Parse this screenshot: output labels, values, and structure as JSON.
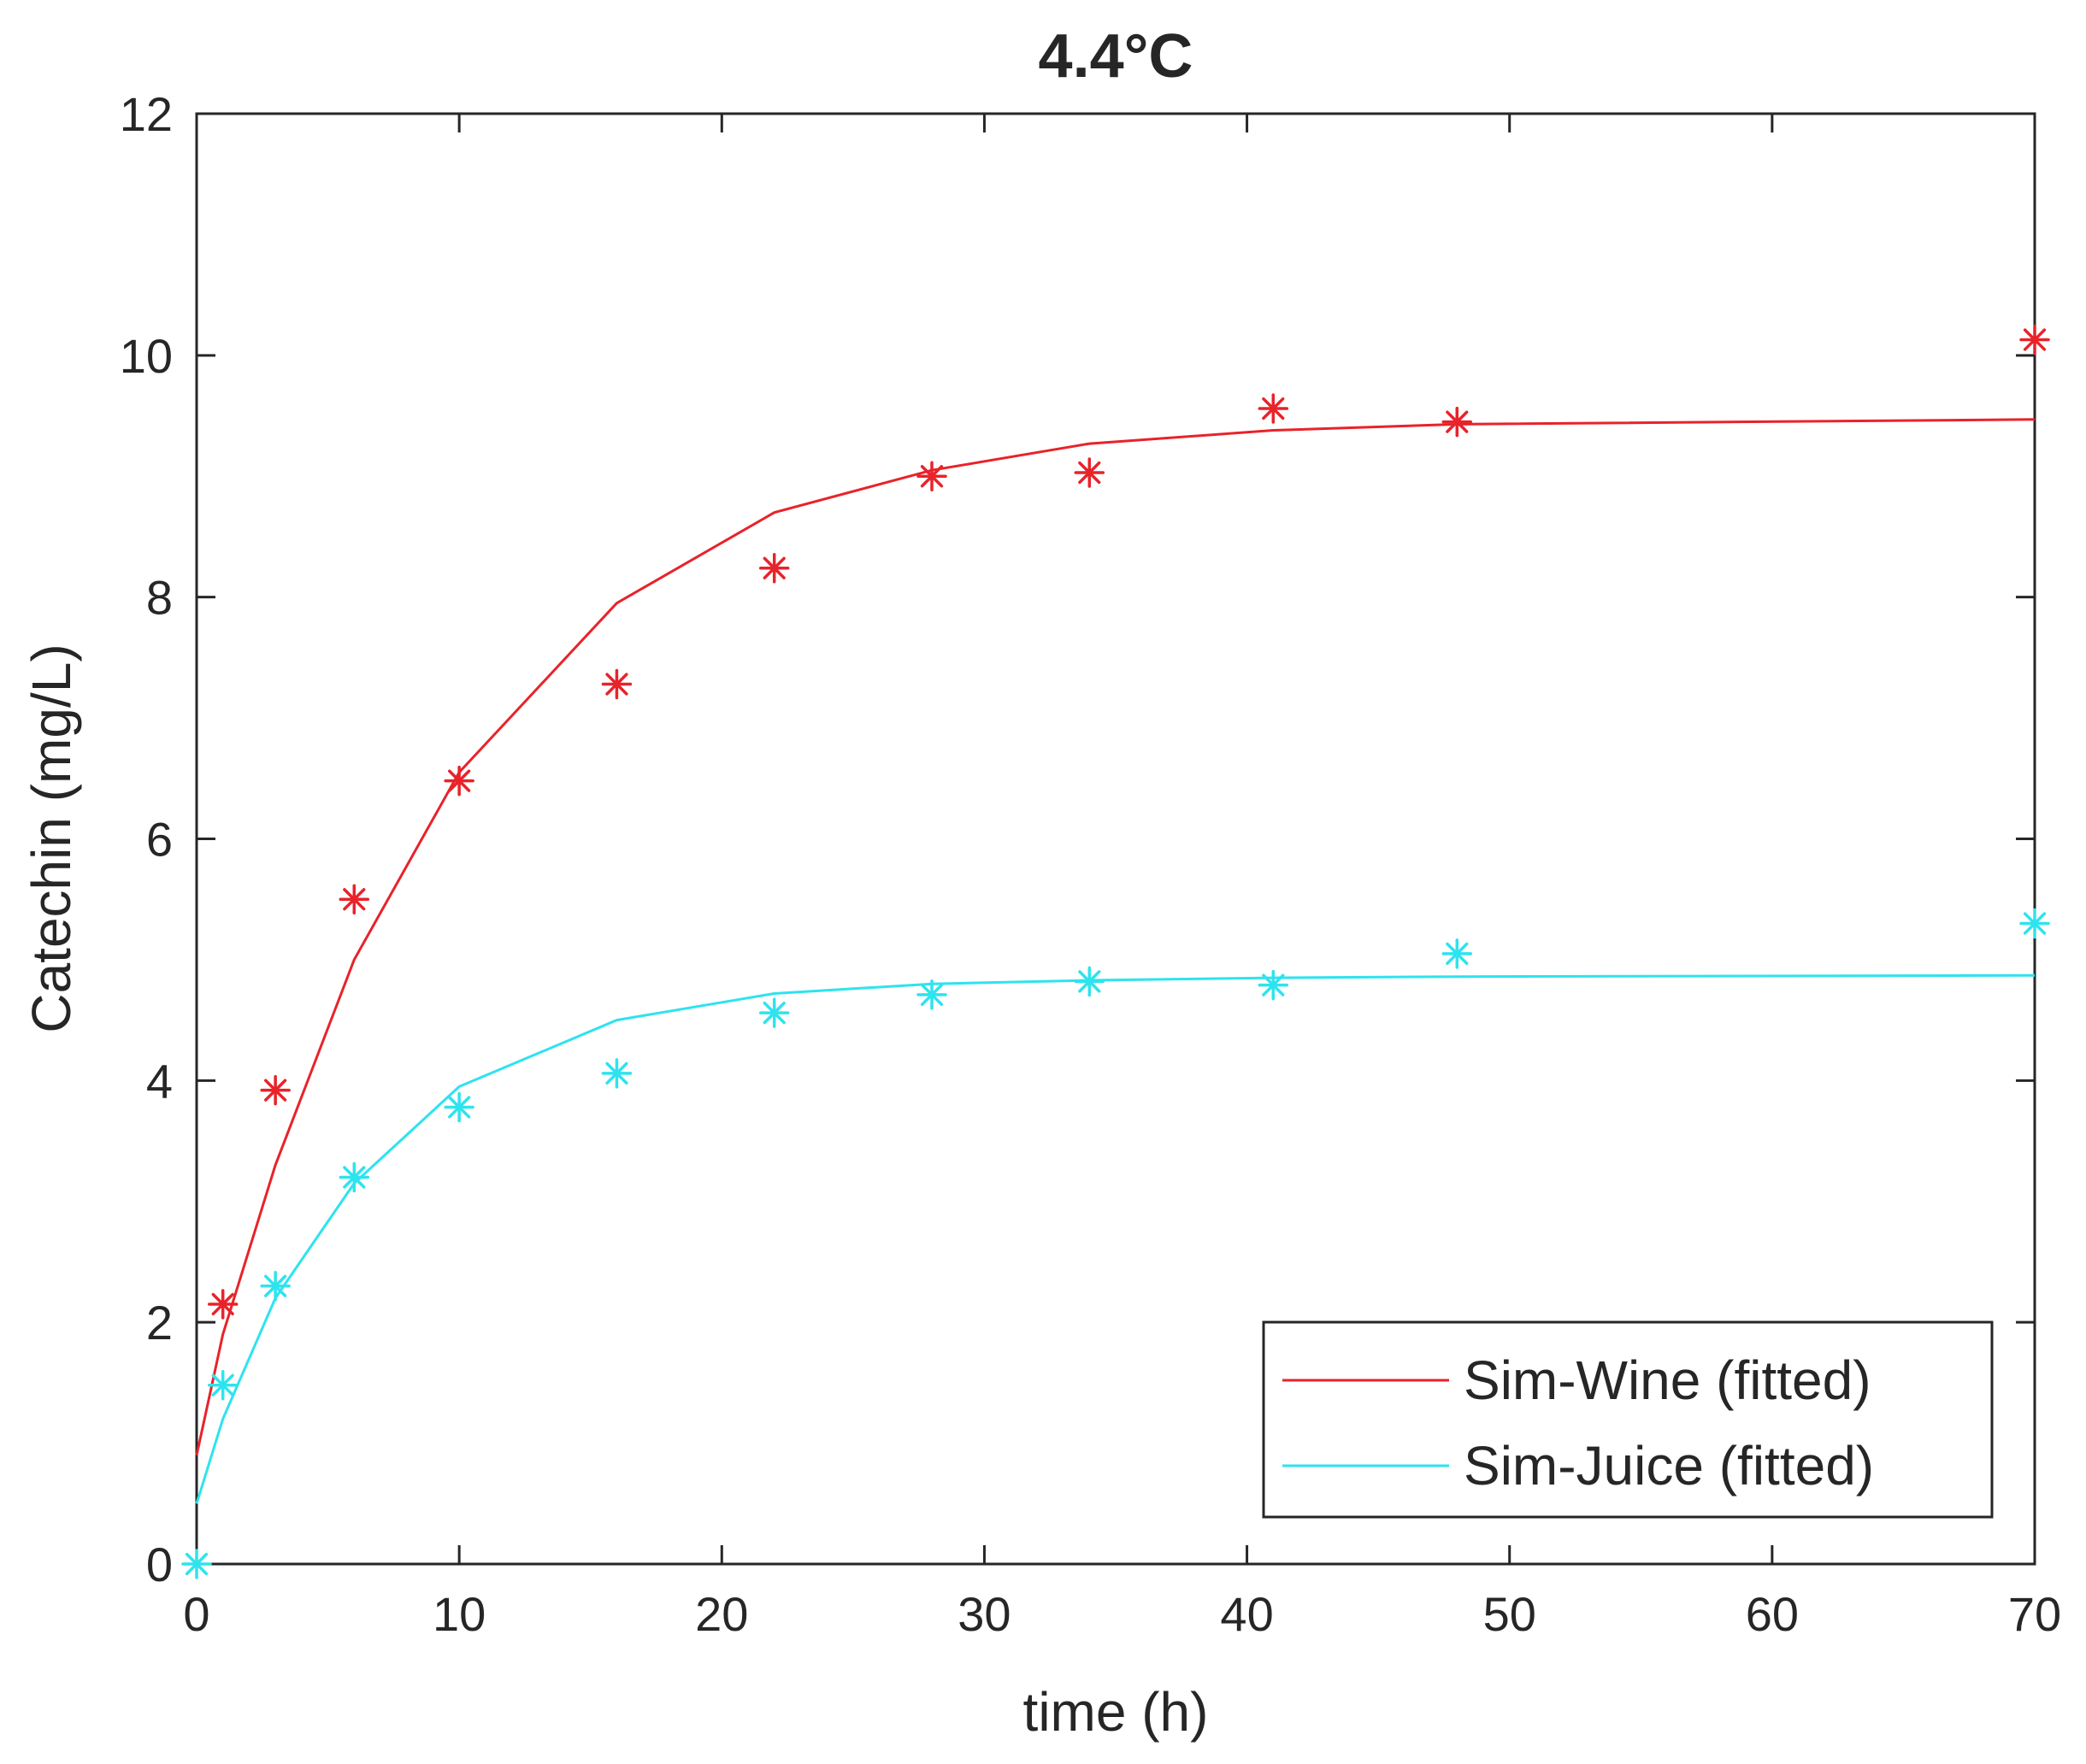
{
  "chart_data": {
    "type": "line",
    "title": "4.4°C",
    "xlabel": "time (h)",
    "ylabel": "Catechin (mg/L)",
    "xlim": [
      0,
      70
    ],
    "ylim": [
      0,
      12
    ],
    "xticks": [
      0,
      10,
      20,
      30,
      40,
      50,
      60,
      70
    ],
    "yticks": [
      0,
      2,
      4,
      6,
      8,
      10,
      12
    ],
    "xtick_labels": [
      "0",
      "10",
      "20",
      "30",
      "40",
      "50",
      "60",
      "70"
    ],
    "ytick_labels": [
      "0",
      "2",
      "4",
      "6",
      "8",
      "10",
      "12"
    ],
    "grid": false,
    "legend_position": "bottom-right",
    "series": [
      {
        "name": "Sim-Wine (fitted)",
        "color": "#e8232a",
        "fitted": {
          "x": [
            0,
            1,
            3,
            6,
            10,
            16,
            22,
            28,
            34,
            41,
            48,
            70
          ],
          "y": [
            0.9,
            1.9,
            3.3,
            5.0,
            6.55,
            7.95,
            8.7,
            9.05,
            9.27,
            9.38,
            9.43,
            9.47
          ]
        },
        "observed": {
          "x": [
            1,
            3,
            6,
            10,
            16,
            22,
            28,
            34,
            41,
            48,
            70
          ],
          "y": [
            2.15,
            3.92,
            5.5,
            6.48,
            7.28,
            8.24,
            9.0,
            9.03,
            9.56,
            9.45,
            10.13
          ]
        }
      },
      {
        "name": "Sim-Juice (fitted)",
        "color": "#2ee3ee",
        "fitted": {
          "x": [
            0,
            1,
            3,
            6,
            10,
            16,
            22,
            28,
            34,
            41,
            48,
            70
          ],
          "y": [
            0.5,
            1.2,
            2.2,
            3.15,
            3.95,
            4.5,
            4.72,
            4.8,
            4.83,
            4.85,
            4.86,
            4.87
          ]
        },
        "observed": {
          "x": [
            0,
            1,
            3,
            6,
            10,
            16,
            22,
            28,
            34,
            41,
            48,
            70
          ],
          "y": [
            0.0,
            1.48,
            2.3,
            3.2,
            3.78,
            4.06,
            4.56,
            4.71,
            4.82,
            4.79,
            5.05,
            5.3
          ]
        }
      }
    ]
  }
}
